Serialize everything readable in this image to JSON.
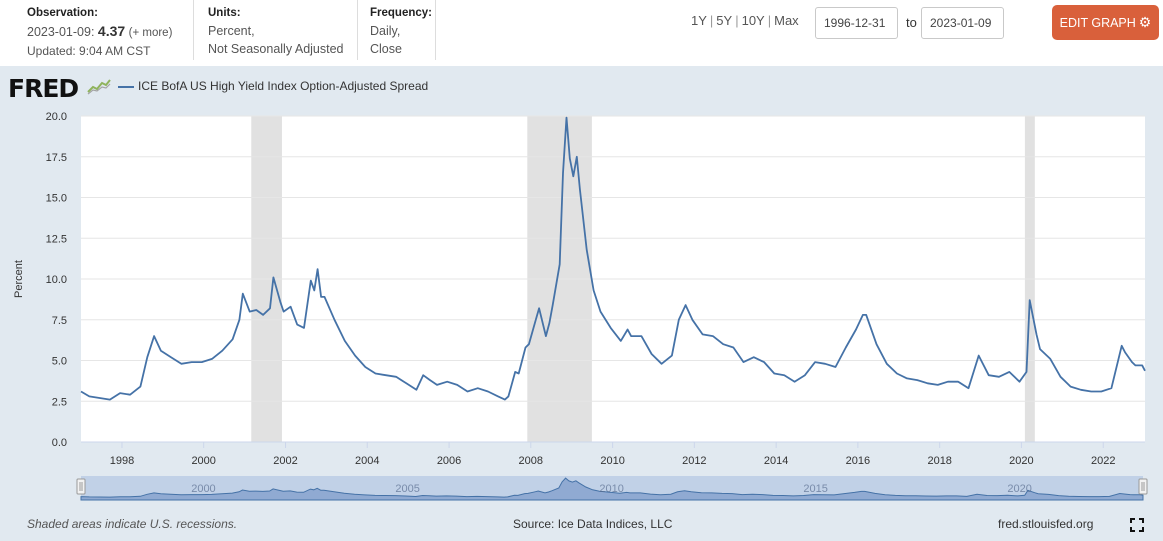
{
  "header": {
    "observation": {
      "label": "Observation:",
      "date": "2023-01-09:",
      "value": "4.37",
      "more": "(+ more)",
      "updated": "Updated: 9:04 AM CST"
    },
    "units": {
      "label": "Units:",
      "line1": "Percent,",
      "line2": "Not Seasonally Adjusted"
    },
    "frequency": {
      "label": "Frequency:",
      "line1": "Daily,",
      "line2": "Close"
    },
    "ranges": [
      "1Y",
      "5Y",
      "10Y",
      "Max"
    ],
    "date_start": "1996-12-31",
    "date_to": "to",
    "date_end": "2023-01-09",
    "edit_button": "EDIT GRAPH"
  },
  "logo": {
    "text": "FRED"
  },
  "legend": {
    "series": "ICE BofA US High Yield Index Option-Adjusted Spread"
  },
  "footer": {
    "note": "Shaded areas indicate U.S. recessions.",
    "source": "Source: Ice Data Indices, LLC",
    "site": "fred.stlouisfed.org"
  },
  "colors": {
    "line": "#4572a7",
    "recession": "#e1e1e1",
    "button": "#d9603b",
    "panel": "#e1e9f0"
  },
  "chart_data": {
    "type": "line",
    "ylabel": "Percent",
    "xlim": [
      "1996-12-31",
      "2023-01-09"
    ],
    "ylim": [
      0,
      20
    ],
    "yticks": [
      0.0,
      2.5,
      5.0,
      7.5,
      10.0,
      12.5,
      15.0,
      17.5,
      20.0
    ],
    "ytick_labels": [
      "0.0",
      "2.5",
      "5.0",
      "7.5",
      "10.0",
      "12.5",
      "15.0",
      "17.5",
      "20.0"
    ],
    "xticks": [
      "1998",
      "2000",
      "2002",
      "2004",
      "2006",
      "2008",
      "2010",
      "2012",
      "2014",
      "2016",
      "2018",
      "2020",
      "2022"
    ],
    "navigator_labels": [
      "2000",
      "2005",
      "2010",
      "2015",
      "2020"
    ],
    "recessions": [
      [
        "2001-03-01",
        "2001-11-30"
      ],
      [
        "2007-12-01",
        "2009-06-30"
      ],
      [
        "2020-02-01",
        "2020-04-30"
      ]
    ],
    "grid": true,
    "series": [
      {
        "name": "ICE BofA US High Yield Index Option-Adjusted Spread",
        "x": [
          "1996-12-31",
          "1997-03",
          "1997-06",
          "1997-09",
          "1997-12",
          "1998-03",
          "1998-06",
          "1998-08",
          "1998-10",
          "1998-12",
          "1999-03",
          "1999-06",
          "1999-09",
          "1999-12",
          "2000-03",
          "2000-06",
          "2000-09",
          "2000-11",
          "2000-12",
          "2001-02",
          "2001-04",
          "2001-06",
          "2001-08",
          "2001-09",
          "2001-11",
          "2001-12",
          "2002-02",
          "2002-04",
          "2002-06",
          "2002-08",
          "2002-09",
          "2002-10",
          "2002-11",
          "2002-12",
          "2003-03",
          "2003-06",
          "2003-09",
          "2003-12",
          "2004-03",
          "2004-06",
          "2004-09",
          "2004-12",
          "2005-03",
          "2005-05",
          "2005-07",
          "2005-09",
          "2005-12",
          "2006-03",
          "2006-06",
          "2006-09",
          "2006-12",
          "2007-03",
          "2007-05",
          "2007-06",
          "2007-08",
          "2007-09",
          "2007-11",
          "2007-12",
          "2008-02",
          "2008-03",
          "2008-05",
          "2008-06",
          "2008-07",
          "2008-09",
          "2008-10",
          "2008-11",
          "2008-12",
          "2009-01",
          "2009-02",
          "2009-03",
          "2009-05",
          "2009-07",
          "2009-09",
          "2009-12",
          "2010-03",
          "2010-05",
          "2010-06",
          "2010-09",
          "2010-12",
          "2011-03",
          "2011-06",
          "2011-08",
          "2011-10",
          "2011-12",
          "2012-03",
          "2012-06",
          "2012-09",
          "2012-12",
          "2013-03",
          "2013-06",
          "2013-09",
          "2013-12",
          "2014-03",
          "2014-06",
          "2014-09",
          "2014-12",
          "2015-03",
          "2015-06",
          "2015-09",
          "2015-12",
          "2016-02",
          "2016-03",
          "2016-06",
          "2016-09",
          "2016-12",
          "2017-03",
          "2017-06",
          "2017-09",
          "2017-12",
          "2018-03",
          "2018-06",
          "2018-09",
          "2018-12",
          "2019-03",
          "2019-06",
          "2019-09",
          "2019-12",
          "2020-02",
          "2020-03",
          "2020-05",
          "2020-06",
          "2020-09",
          "2020-12",
          "2021-03",
          "2021-06",
          "2021-09",
          "2021-12",
          "2022-03",
          "2022-06",
          "2022-07",
          "2022-09",
          "2022-10",
          "2022-12",
          "2023-01-09"
        ],
        "y": [
          3.1,
          2.8,
          2.7,
          2.6,
          3.0,
          2.9,
          3.4,
          5.2,
          6.5,
          5.6,
          5.2,
          4.8,
          4.9,
          4.9,
          5.1,
          5.6,
          6.3,
          7.5,
          9.1,
          8.0,
          8.1,
          7.8,
          8.2,
          10.1,
          8.6,
          8.0,
          8.3,
          7.2,
          7.0,
          9.9,
          9.3,
          10.6,
          8.9,
          8.9,
          7.5,
          6.2,
          5.3,
          4.6,
          4.2,
          4.1,
          4.0,
          3.6,
          3.2,
          4.1,
          3.8,
          3.5,
          3.7,
          3.5,
          3.1,
          3.3,
          3.1,
          2.8,
          2.6,
          2.8,
          4.3,
          4.2,
          5.8,
          6.0,
          7.5,
          8.2,
          6.5,
          7.3,
          8.4,
          10.9,
          16.5,
          19.9,
          17.4,
          16.3,
          17.5,
          15.5,
          11.8,
          9.3,
          8.0,
          7.0,
          6.2,
          6.9,
          6.5,
          6.5,
          5.4,
          4.8,
          5.3,
          7.5,
          8.4,
          7.5,
          6.6,
          6.5,
          6.0,
          5.8,
          4.9,
          5.2,
          4.9,
          4.2,
          4.1,
          3.7,
          4.1,
          4.9,
          4.8,
          4.6,
          5.8,
          6.9,
          7.8,
          7.8,
          6.0,
          4.8,
          4.2,
          3.9,
          3.8,
          3.6,
          3.5,
          3.7,
          3.7,
          3.3,
          5.3,
          4.1,
          4.0,
          4.3,
          3.7,
          4.3,
          8.7,
          6.6,
          5.7,
          5.1,
          4.0,
          3.4,
          3.2,
          3.1,
          3.1,
          3.3,
          5.9,
          5.5,
          4.9,
          4.7,
          4.7,
          4.37
        ]
      }
    ]
  }
}
